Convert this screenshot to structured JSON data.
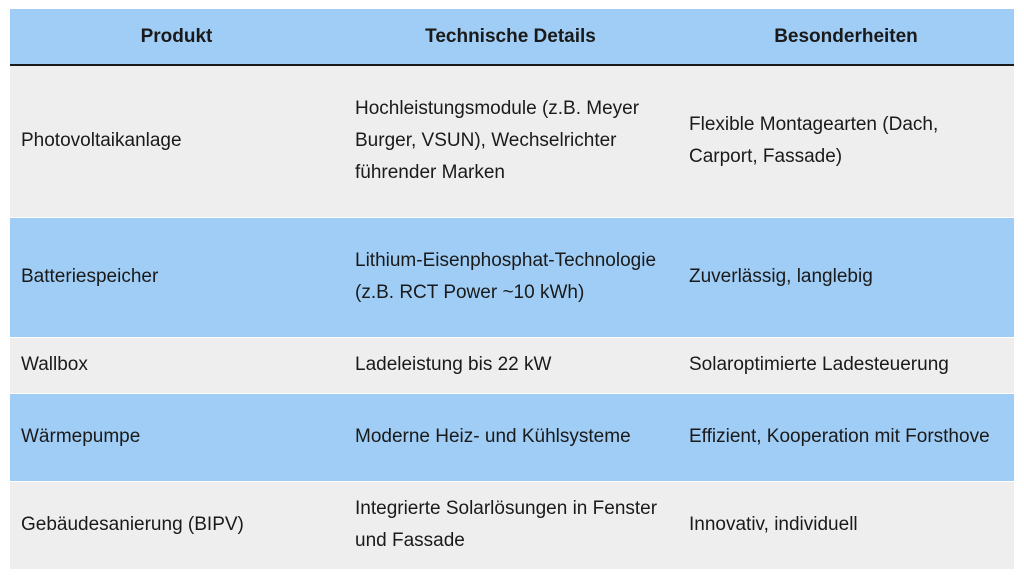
{
  "table": {
    "headers": [
      "Produkt",
      "Technische Details",
      "Besonderheiten"
    ],
    "rows": [
      {
        "product": "Photovoltaikanlage",
        "details": "Hochleistungsmodule (z.B. Meyer Burger, VSUN), Wechselrichter führender Marken",
        "features": "Flexible Montagearten (Dach, Carport, Fassade)"
      },
      {
        "product": "Batteriespeicher",
        "details": "Lithium-Eisenphosphat-Technologie (z.B. RCT Power ~10 kWh)",
        "features": "Zuverlässig, langlebig"
      },
      {
        "product": "Wallbox",
        "details": "Ladeleistung bis 22 kW",
        "features": "Solaroptimierte Ladesteuerung"
      },
      {
        "product": "Wärmepumpe",
        "details": "Moderne Heiz- und Kühlsysteme",
        "features": "Effizient, Kooperation mit Forsthove"
      },
      {
        "product": "Gebäudesanierung (BIPV)",
        "details": "Integrierte Solarlösungen in Fenster und Fassade",
        "features": "Innovativ, individuell"
      }
    ]
  },
  "colors": {
    "header_bg": "#9fcdf5",
    "row_blue": "#9fcdf5",
    "row_gray": "#eeeeee",
    "text": "#1a1a1a"
  }
}
